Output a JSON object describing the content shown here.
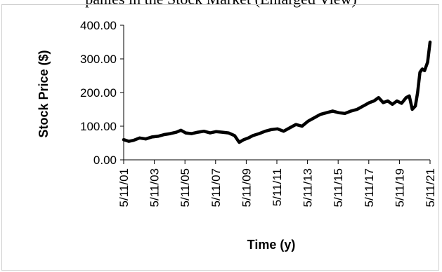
{
  "caption_fragment": "panies in the Stock Market (Enlarged View)",
  "chart_data": {
    "type": "line",
    "xlabel": "Time (y)",
    "ylabel": "Stock Price ($)",
    "ylim": [
      0,
      400
    ],
    "yticks": [
      "0.00",
      "100.00",
      "200.00",
      "300.00",
      "400.00"
    ],
    "xticks": [
      "5/11/01",
      "5/11/03",
      "5/11/05",
      "5/11/07",
      "5/11/09",
      "5/11/11",
      "5/11/13",
      "5/11/15",
      "5/11/17",
      "5/11/19",
      "5/11/21"
    ],
    "xlim": [
      2001.36,
      2021.36
    ],
    "grid": false,
    "line_color": "#000000",
    "series": [
      {
        "x": [
          2001.36,
          2001.7,
          2002.0,
          2002.4,
          2002.8,
          2003.2,
          2003.6,
          2004.0,
          2004.4,
          2004.8,
          2005.1,
          2005.4,
          2005.8,
          2006.2,
          2006.6,
          2007.0,
          2007.4,
          2007.8,
          2008.2,
          2008.6,
          2008.9,
          2009.2,
          2009.5,
          2009.8,
          2010.2,
          2010.6,
          2011.0,
          2011.4,
          2011.8,
          2012.2,
          2012.6,
          2013.0,
          2013.4,
          2013.8,
          2014.2,
          2014.6,
          2015.0,
          2015.4,
          2015.8,
          2016.2,
          2016.6,
          2017.0,
          2017.4,
          2017.7,
          2018.0,
          2018.3,
          2018.6,
          2018.9,
          2019.2,
          2019.5,
          2019.8,
          2020.0,
          2020.2,
          2020.4,
          2020.55,
          2020.7,
          2020.85,
          2021.0,
          2021.2,
          2021.36
        ],
        "y": [
          60,
          55,
          58,
          65,
          62,
          68,
          70,
          75,
          78,
          82,
          88,
          80,
          78,
          82,
          85,
          80,
          84,
          82,
          80,
          72,
          52,
          60,
          65,
          72,
          78,
          85,
          90,
          92,
          85,
          95,
          105,
          100,
          115,
          125,
          135,
          140,
          145,
          140,
          138,
          145,
          150,
          160,
          170,
          175,
          185,
          170,
          175,
          165,
          175,
          168,
          185,
          190,
          150,
          160,
          200,
          260,
          270,
          265,
          290,
          350
        ]
      }
    ]
  }
}
